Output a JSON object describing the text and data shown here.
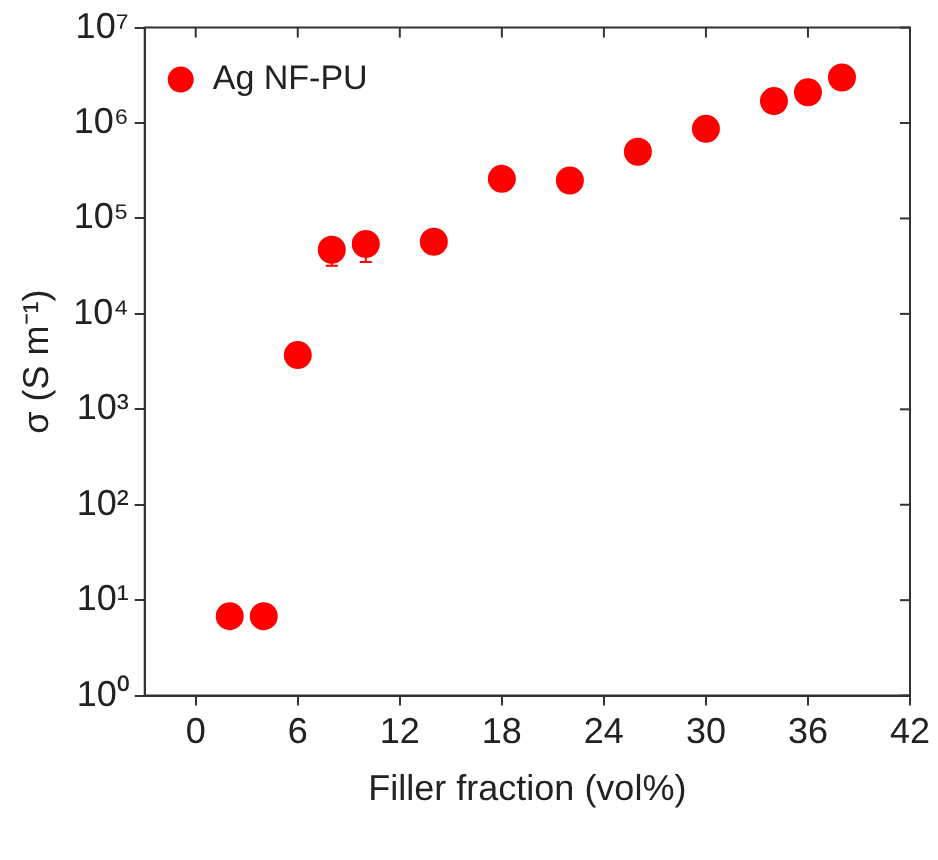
{
  "chart_data": {
    "type": "scatter",
    "xlabel": "Filler fraction (vol%)",
    "ylabel": "σ (S m⁻¹)",
    "x": [
      2,
      4,
      6,
      8,
      10,
      14,
      18,
      22,
      26,
      30,
      34,
      36,
      38
    ],
    "series": [
      {
        "name": "Ag NF-PU",
        "color": "#ff0000",
        "values": [
          6.8,
          6.8,
          3700,
          47000,
          54000,
          57000,
          260000,
          250000,
          500000,
          870000,
          1700000,
          2100000,
          3000000
        ],
        "errors": [
          null,
          null,
          null,
          [
            32000,
            62000
          ],
          [
            35000,
            70000
          ],
          null,
          null,
          null,
          null,
          null,
          null,
          null,
          null
        ]
      }
    ],
    "xlim": [
      -3,
      42
    ],
    "xticks": [
      0,
      6,
      12,
      18,
      24,
      30,
      36,
      42
    ],
    "ylim": [
      1,
      10000000
    ],
    "log": "y",
    "yticks": [
      {
        "value": 1,
        "label": "10⁰"
      },
      {
        "value": 10,
        "label": "10¹"
      },
      {
        "value": 100,
        "label": "10²"
      },
      {
        "value": 1000,
        "label": "10³"
      },
      {
        "value": 10000,
        "label": "10⁴"
      },
      {
        "value": 100000,
        "label": "10⁵"
      },
      {
        "value": 1000000,
        "label": "10⁶"
      },
      {
        "value": 10000000,
        "label": "10⁷"
      }
    ],
    "marker": "circle",
    "legend": "top left",
    "grid": false
  }
}
